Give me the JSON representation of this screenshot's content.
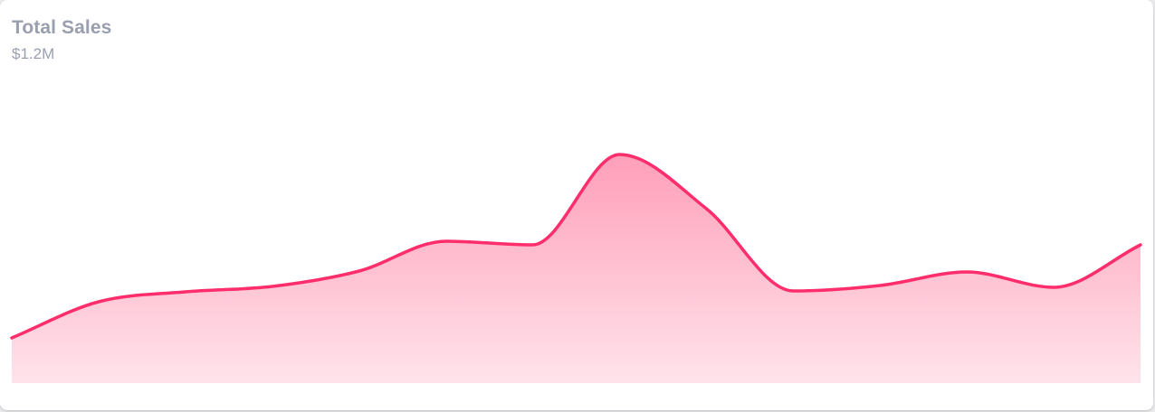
{
  "card": {
    "title": "Total Sales",
    "value": "$1.2M"
  },
  "colors": {
    "line": "#ff2d6b",
    "fill_top": "#ff9fb9",
    "fill_bottom": "#ffe3eb",
    "title": "#9a9fb0"
  },
  "chart_data": {
    "type": "area",
    "title": "Total Sales",
    "subtitle": "$1.2M",
    "axes_visible": false,
    "grid": false,
    "legend": "none",
    "ylim": [
      0,
      300
    ],
    "series": [
      {
        "values": [
          50,
          90,
          101,
          107,
          124,
          157,
          153,
          253,
          193,
          102,
          108,
          123,
          106,
          153
        ]
      }
    ]
  }
}
